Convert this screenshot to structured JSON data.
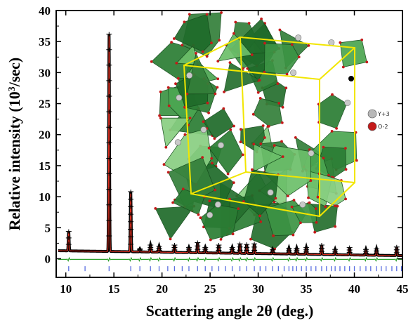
{
  "chart_data": {
    "type": "line",
    "xlabel": "Scattering angle 2θ (deg.)",
    "ylabel_main": "Relative intensity (10",
    "ylabel_sup": "3",
    "ylabel_end": "/sec)",
    "xlim": [
      9,
      45
    ],
    "ylim": [
      -3,
      40
    ],
    "x_ticks": [
      10,
      15,
      20,
      25,
      30,
      35,
      40,
      45
    ],
    "y_ticks": [
      0,
      5,
      10,
      15,
      20,
      25,
      30,
      35,
      40
    ],
    "grid": false,
    "background_level": 1.3,
    "background_level_end": 0.5,
    "peaks": [
      {
        "x": 10.3,
        "y": 4.4
      },
      {
        "x": 14.5,
        "y": 36.2
      },
      {
        "x": 16.75,
        "y": 10.8
      },
      {
        "x": 17.7,
        "y": 1.6
      },
      {
        "x": 18.8,
        "y": 2.2
      },
      {
        "x": 19.7,
        "y": 2.0
      },
      {
        "x": 21.3,
        "y": 2.2
      },
      {
        "x": 22.8,
        "y": 1.8
      },
      {
        "x": 23.7,
        "y": 2.6
      },
      {
        "x": 24.5,
        "y": 1.8
      },
      {
        "x": 25.9,
        "y": 2.2
      },
      {
        "x": 27.3,
        "y": 1.8
      },
      {
        "x": 28.1,
        "y": 2.4
      },
      {
        "x": 28.8,
        "y": 2.3
      },
      {
        "x": 29.6,
        "y": 2.4
      },
      {
        "x": 31.5,
        "y": 1.5
      },
      {
        "x": 33.2,
        "y": 1.7
      },
      {
        "x": 34.0,
        "y": 1.7
      },
      {
        "x": 35.0,
        "y": 1.8
      },
      {
        "x": 36.6,
        "y": 2.2
      },
      {
        "x": 38.0,
        "y": 1.5
      },
      {
        "x": 39.5,
        "y": 1.8
      },
      {
        "x": 41.2,
        "y": 1.5
      },
      {
        "x": 42.3,
        "y": 1.6
      },
      {
        "x": 44.4,
        "y": 1.9
      }
    ],
    "bragg_marks": [
      10.3,
      12.0,
      14.5,
      16.75,
      17.7,
      18.8,
      19.7,
      20.6,
      21.3,
      22.1,
      22.8,
      23.7,
      24.5,
      25.2,
      25.9,
      26.6,
      27.3,
      28.1,
      28.8,
      29.6,
      30.2,
      30.8,
      31.5,
      32.1,
      32.7,
      33.2,
      33.6,
      34.0,
      34.5,
      35.0,
      35.5,
      36.0,
      36.6,
      37.1,
      37.6,
      38.0,
      38.5,
      39.0,
      39.5,
      40.0,
      40.6,
      41.2,
      41.7,
      42.3,
      42.8,
      43.3,
      43.9,
      44.4,
      44.9
    ],
    "series": [
      {
        "role": "observed",
        "color": "#000000"
      },
      {
        "role": "calculated",
        "color": "#e03020"
      },
      {
        "role": "difference",
        "color": "#2aa02a"
      },
      {
        "role": "bragg",
        "color": "#5a6ee0"
      }
    ]
  },
  "inset": {
    "legend": [
      {
        "label": "Y+3",
        "color": "#b8b8b8"
      },
      {
        "label": "O-2",
        "color": "#c41a1a"
      }
    ],
    "polyhedra_color": "#2f8f3a",
    "cell_color": "#f2e600"
  }
}
